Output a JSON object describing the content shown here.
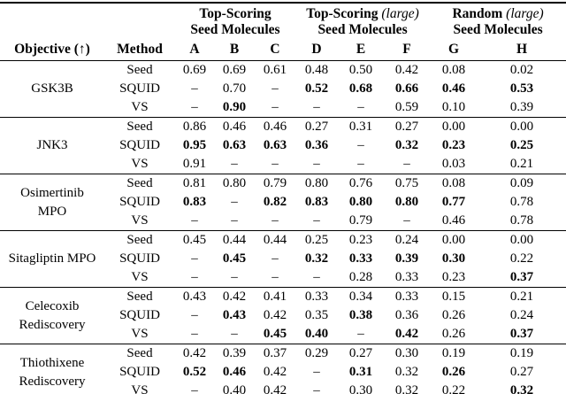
{
  "table": {
    "objective_header": "Objective (↑)",
    "method_header": "Method",
    "dash": "–",
    "groups": [
      {
        "title": "Top-Scoring",
        "title_italic": "",
        "subtitle": "Seed Molecules",
        "cols": [
          "A",
          "B",
          "C"
        ]
      },
      {
        "title": "Top-Scoring",
        "title_italic": "(large)",
        "subtitle": "Seed Molecules",
        "cols": [
          "D",
          "E",
          "F"
        ]
      },
      {
        "title": "Random",
        "title_italic": "(large)",
        "subtitle": "Seed Molecules",
        "cols": [
          "G",
          "H"
        ]
      }
    ],
    "blocks": [
      {
        "objective": "GSK3B",
        "rows": [
          {
            "method": "Seed",
            "values": [
              "0.69",
              "0.69",
              "0.61",
              "0.48",
              "0.50",
              "0.42",
              "0.08",
              "0.02"
            ],
            "bold": [
              0,
              0,
              0,
              0,
              0,
              0,
              0,
              0
            ]
          },
          {
            "method": "SQUID",
            "values": [
              "–",
              "0.70",
              "–",
              "0.52",
              "0.68",
              "0.66",
              "0.46",
              "0.53"
            ],
            "bold": [
              0,
              0,
              0,
              1,
              1,
              1,
              1,
              1
            ]
          },
          {
            "method": "VS",
            "values": [
              "–",
              "0.90",
              "–",
              "–",
              "–",
              "0.59",
              "0.10",
              "0.39"
            ],
            "bold": [
              0,
              1,
              0,
              0,
              0,
              0,
              0,
              0
            ]
          }
        ]
      },
      {
        "objective": "JNK3",
        "rows": [
          {
            "method": "Seed",
            "values": [
              "0.86",
              "0.46",
              "0.46",
              "0.27",
              "0.31",
              "0.27",
              "0.00",
              "0.00"
            ],
            "bold": [
              0,
              0,
              0,
              0,
              0,
              0,
              0,
              0
            ]
          },
          {
            "method": "SQUID",
            "values": [
              "0.95",
              "0.63",
              "0.63",
              "0.36",
              "–",
              "0.32",
              "0.23",
              "0.25"
            ],
            "bold": [
              1,
              1,
              1,
              1,
              0,
              1,
              1,
              1
            ]
          },
          {
            "method": "VS",
            "values": [
              "0.91",
              "–",
              "–",
              "–",
              "–",
              "–",
              "0.03",
              "0.21"
            ],
            "bold": [
              0,
              0,
              0,
              0,
              0,
              0,
              0,
              0
            ]
          }
        ]
      },
      {
        "objective": "Osimertinib MPO",
        "rows": [
          {
            "method": "Seed",
            "values": [
              "0.81",
              "0.80",
              "0.79",
              "0.80",
              "0.76",
              "0.75",
              "0.08",
              "0.09"
            ],
            "bold": [
              0,
              0,
              0,
              0,
              0,
              0,
              0,
              0
            ]
          },
          {
            "method": "SQUID",
            "values": [
              "0.83",
              "–",
              "0.82",
              "0.83",
              "0.80",
              "0.80",
              "0.77",
              "0.78"
            ],
            "bold": [
              1,
              0,
              1,
              1,
              1,
              1,
              1,
              0
            ]
          },
          {
            "method": "VS",
            "values": [
              "–",
              "–",
              "–",
              "–",
              "0.79",
              "–",
              "0.46",
              "0.78"
            ],
            "bold": [
              0,
              0,
              0,
              0,
              0,
              0,
              0,
              0
            ]
          }
        ]
      },
      {
        "objective": "Sitagliptin MPO",
        "rows": [
          {
            "method": "Seed",
            "values": [
              "0.45",
              "0.44",
              "0.44",
              "0.25",
              "0.23",
              "0.24",
              "0.00",
              "0.00"
            ],
            "bold": [
              0,
              0,
              0,
              0,
              0,
              0,
              0,
              0
            ]
          },
          {
            "method": "SQUID",
            "values": [
              "–",
              "0.45",
              "–",
              "0.32",
              "0.33",
              "0.39",
              "0.30",
              "0.22"
            ],
            "bold": [
              0,
              1,
              0,
              1,
              1,
              1,
              1,
              0
            ]
          },
          {
            "method": "VS",
            "values": [
              "–",
              "–",
              "–",
              "–",
              "0.28",
              "0.33",
              "0.23",
              "0.37"
            ],
            "bold": [
              0,
              0,
              0,
              0,
              0,
              0,
              0,
              1
            ]
          }
        ]
      },
      {
        "objective": "Celecoxib Rediscovery",
        "rows": [
          {
            "method": "Seed",
            "values": [
              "0.43",
              "0.42",
              "0.41",
              "0.33",
              "0.34",
              "0.33",
              "0.15",
              "0.21"
            ],
            "bold": [
              0,
              0,
              0,
              0,
              0,
              0,
              0,
              0
            ]
          },
          {
            "method": "SQUID",
            "values": [
              "–",
              "0.43",
              "0.42",
              "0.35",
              "0.38",
              "0.36",
              "0.26",
              "0.24"
            ],
            "bold": [
              0,
              1,
              0,
              0,
              1,
              0,
              0,
              0
            ]
          },
          {
            "method": "VS",
            "values": [
              "–",
              "–",
              "0.45",
              "0.40",
              "–",
              "0.42",
              "0.26",
              "0.37"
            ],
            "bold": [
              0,
              0,
              1,
              1,
              0,
              1,
              0,
              1
            ]
          }
        ]
      },
      {
        "objective": "Thiothixene Rediscovery",
        "rows": [
          {
            "method": "Seed",
            "values": [
              "0.42",
              "0.39",
              "0.37",
              "0.29",
              "0.27",
              "0.30",
              "0.19",
              "0.19"
            ],
            "bold": [
              0,
              0,
              0,
              0,
              0,
              0,
              0,
              0
            ]
          },
          {
            "method": "SQUID",
            "values": [
              "0.52",
              "0.46",
              "0.42",
              "–",
              "0.31",
              "0.32",
              "0.26",
              "0.27"
            ],
            "bold": [
              1,
              1,
              0,
              0,
              1,
              0,
              1,
              0
            ]
          },
          {
            "method": "VS",
            "values": [
              "–",
              "0.40",
              "0.42",
              "–",
              "0.30",
              "0.32",
              "0.22",
              "0.32"
            ],
            "bold": [
              0,
              0,
              0,
              0,
              0,
              0,
              0,
              1
            ]
          }
        ]
      }
    ]
  }
}
